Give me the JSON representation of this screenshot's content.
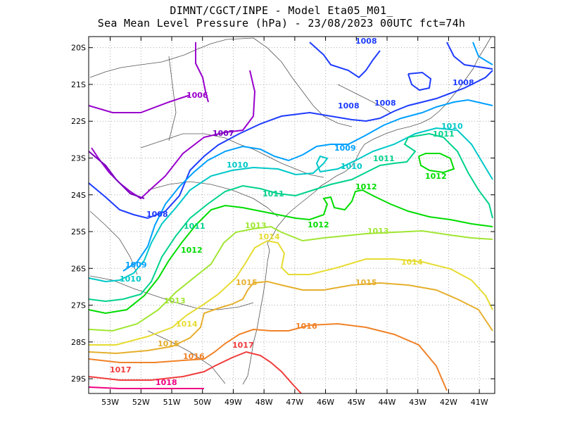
{
  "title": {
    "line1": "DIMNT/CGCT/INPE -  Model Eta05_M01_",
    "line2": "Sea Mean Level Pressure (hPa) - 23/08/2023 00UTC fct=74h"
  },
  "axes": {
    "x_labels": [
      "53W",
      "52W",
      "51W",
      "50W",
      "49W",
      "48W",
      "47W",
      "46W",
      "45W",
      "44W",
      "43W",
      "42W",
      "41W"
    ],
    "y_labels": [
      "20S",
      "21S",
      "22S",
      "23S",
      "24S",
      "25S",
      "26S",
      "27S",
      "28S",
      "29S"
    ],
    "lon_range": [
      -53.7,
      -40.5
    ],
    "lat_range": [
      -29.4,
      -19.7
    ],
    "grid": true
  },
  "isobars": [
    {
      "value": 1006,
      "label": "1006",
      "color": "#9900cc"
    },
    {
      "value": 1007,
      "label": "1007",
      "color": "#7a00bf"
    },
    {
      "value": 1008,
      "label": "1008",
      "color": "#1e3cff"
    },
    {
      "value": 1009,
      "label": "1009",
      "color": "#00a0ff"
    },
    {
      "value": 1010,
      "label": "1010",
      "color": "#00c8c8"
    },
    {
      "value": 1011,
      "label": "1011",
      "color": "#00d28c"
    },
    {
      "value": 1012,
      "label": "1012",
      "color": "#00dc00"
    },
    {
      "value": 1013,
      "label": "1013",
      "color": "#a0e632"
    },
    {
      "value": 1014,
      "label": "1014",
      "color": "#e6dc32"
    },
    {
      "value": 1015,
      "label": "1015",
      "color": "#e6af2d"
    },
    {
      "value": 1016,
      "label": "1016",
      "color": "#f08228"
    },
    {
      "value": 1017,
      "label": "1017",
      "color": "#f03c3c"
    },
    {
      "value": 1018,
      "label": "1018",
      "color": "#f00082"
    }
  ]
}
